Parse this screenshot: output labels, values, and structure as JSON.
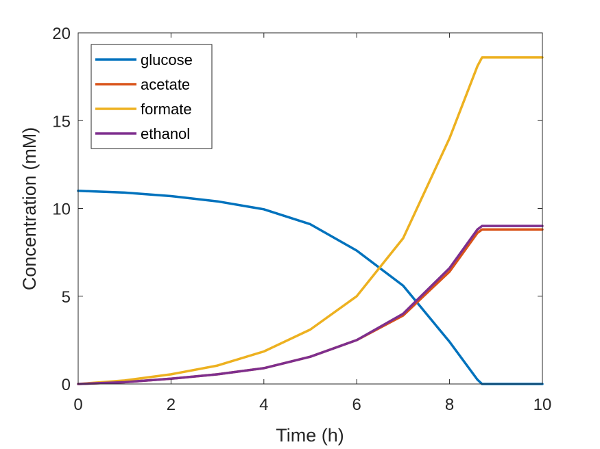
{
  "chart_data": {
    "type": "line",
    "title": "",
    "xlabel": "Time (h)",
    "ylabel": "Concentration (mM)",
    "xlim": [
      0,
      10
    ],
    "ylim": [
      0,
      20
    ],
    "xticks": [
      0,
      2,
      4,
      6,
      8,
      10
    ],
    "yticks": [
      0,
      5,
      10,
      15,
      20
    ],
    "grid": false,
    "legend_position": "top-left",
    "x": [
      0,
      1,
      2,
      3,
      4,
      5,
      6,
      7,
      8,
      8.6,
      8.7,
      9,
      10
    ],
    "series": [
      {
        "name": "glucose",
        "color": "#0072BD",
        "values": [
          11.0,
          10.9,
          10.7,
          10.4,
          9.95,
          9.1,
          7.6,
          5.6,
          2.4,
          0.25,
          0.0,
          0.0,
          0.0
        ]
      },
      {
        "name": "acetate",
        "color": "#D95319",
        "values": [
          0.0,
          0.1,
          0.3,
          0.55,
          0.9,
          1.55,
          2.5,
          3.9,
          6.4,
          8.6,
          8.8,
          8.8,
          8.8
        ]
      },
      {
        "name": "formate",
        "color": "#EDB120",
        "values": [
          0.0,
          0.2,
          0.55,
          1.05,
          1.85,
          3.1,
          5.0,
          8.3,
          14.0,
          18.1,
          18.6,
          18.6,
          18.6
        ]
      },
      {
        "name": "ethanol",
        "color": "#7E2F8E",
        "values": [
          0.0,
          0.1,
          0.3,
          0.55,
          0.9,
          1.55,
          2.5,
          4.0,
          6.6,
          8.8,
          9.0,
          9.0,
          9.0
        ]
      }
    ]
  }
}
